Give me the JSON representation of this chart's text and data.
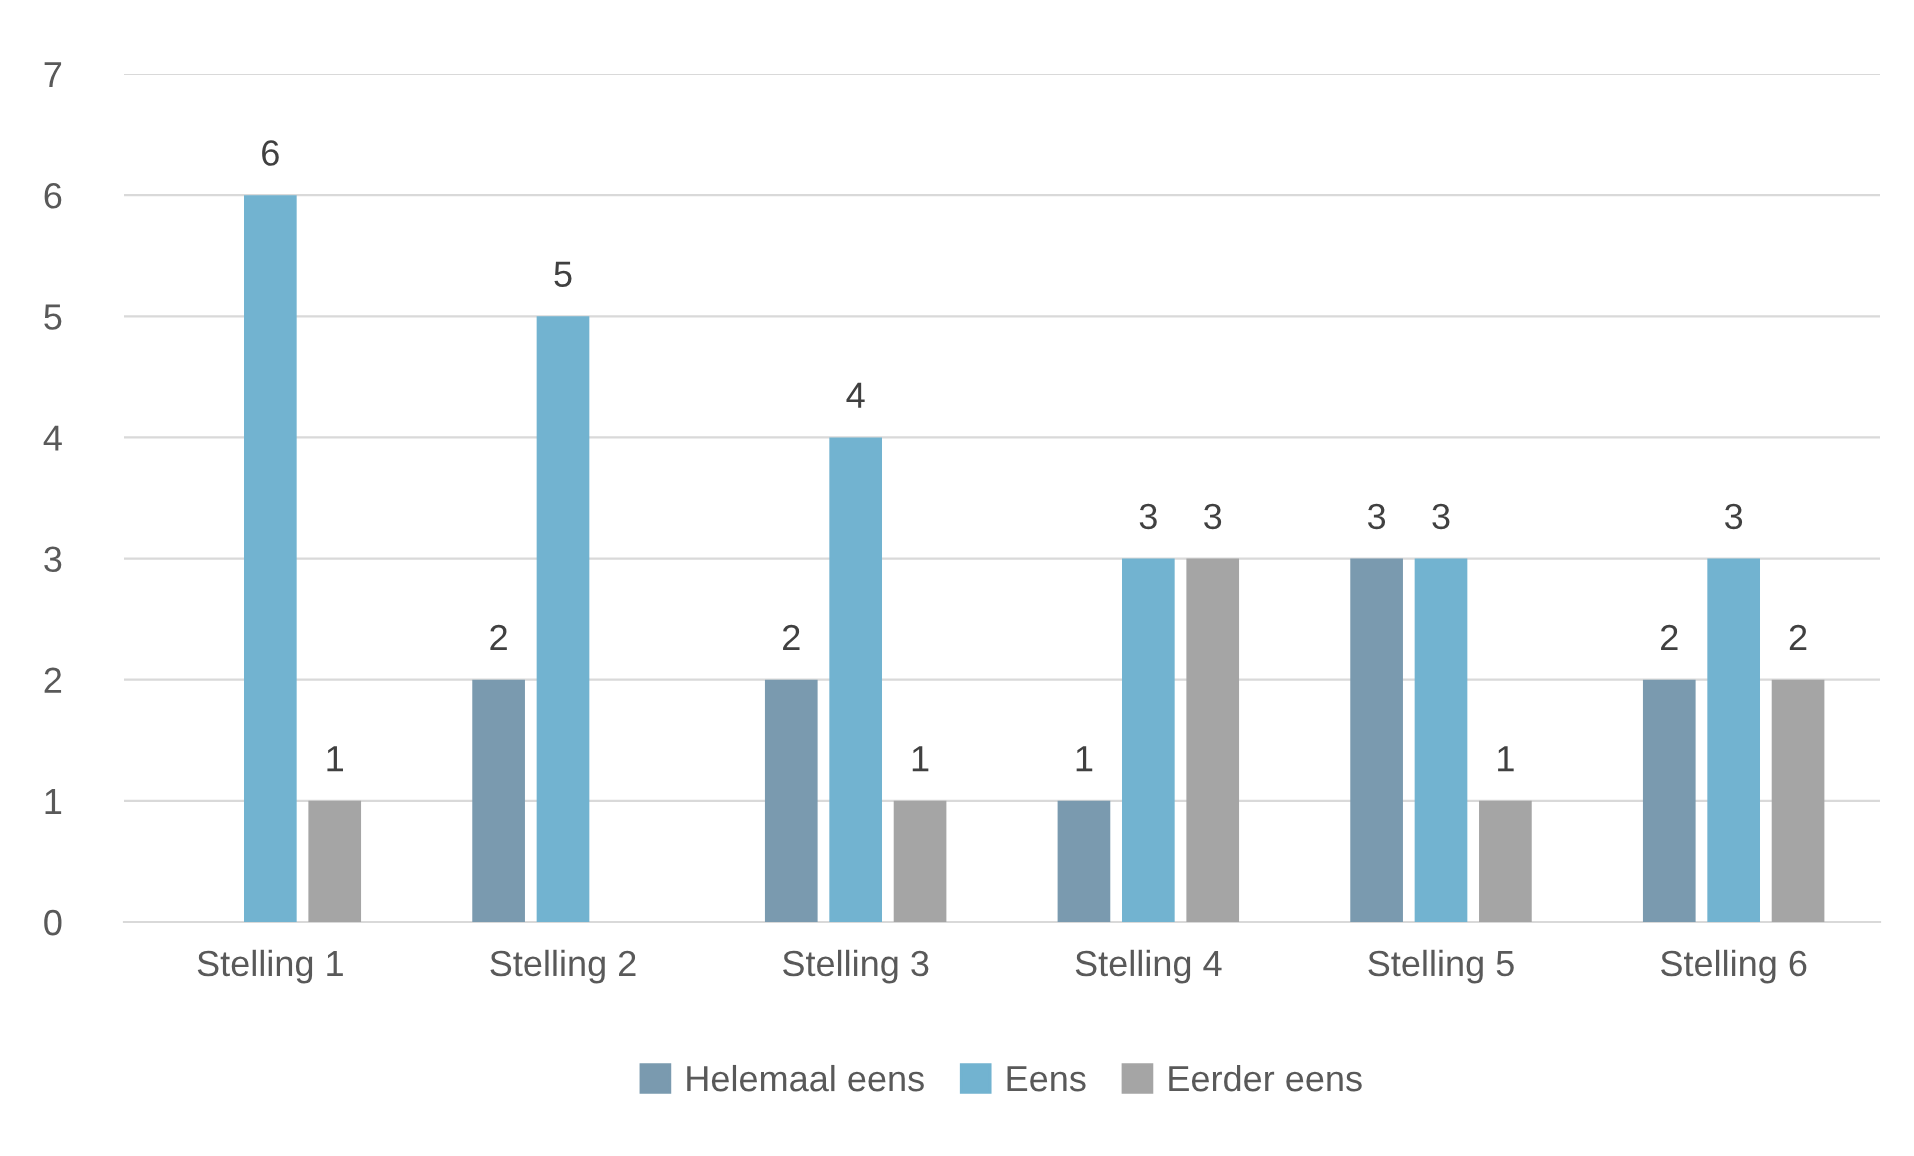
{
  "chart_data": {
    "type": "bar",
    "categories": [
      "Stelling 1",
      "Stelling 2",
      "Stelling 3",
      "Stelling 4",
      "Stelling 5",
      "Stelling 6"
    ],
    "series": [
      {
        "name": "Helemaal eens",
        "color": "#7a9aaf",
        "values": [
          null,
          2,
          2,
          1,
          3,
          2
        ]
      },
      {
        "name": "Eens",
        "color": "#72b3d0",
        "values": [
          6,
          5,
          4,
          3,
          3,
          3
        ]
      },
      {
        "name": "Eerder eens",
        "color": "#a5a5a5",
        "values": [
          1,
          null,
          1,
          3,
          1,
          2
        ]
      }
    ],
    "ylim": [
      0,
      7
    ],
    "yticks": [
      0,
      1,
      2,
      3,
      4,
      5,
      6,
      7
    ],
    "grid": "y",
    "legend": "bottom",
    "data_labels": true
  }
}
